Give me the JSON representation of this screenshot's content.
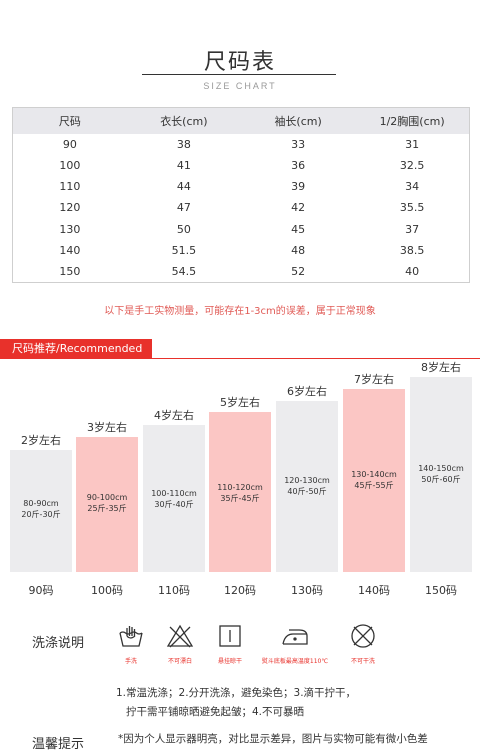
{
  "header": {
    "title": "尺码表",
    "subtitle": "SIZE CHART"
  },
  "table": {
    "columns": [
      "尺码",
      "衣长(cm)",
      "袖长(cm)",
      "1/2胸围(cm)"
    ],
    "rows": [
      [
        "90",
        "38",
        "33",
        "31"
      ],
      [
        "100",
        "41",
        "36",
        "32.5"
      ],
      [
        "110",
        "44",
        "39",
        "34"
      ],
      [
        "120",
        "47",
        "42",
        "35.5"
      ],
      [
        "130",
        "50",
        "45",
        "37"
      ],
      [
        "140",
        "51.5",
        "48",
        "38.5"
      ],
      [
        "150",
        "54.5",
        "52",
        "40"
      ]
    ]
  },
  "note": "以下是手工实物测量，可能存在1-3cm的误差，属于正常现象",
  "recommend": {
    "tag": "尺码推荐/Recommended",
    "colors": {
      "accent": "#e8312b",
      "pink": "#fbc6c4",
      "grey": "#ececee"
    },
    "bars": [
      {
        "age": "2岁左右",
        "height_cm": "80-90cm",
        "weight": "20斤-30斤",
        "size": "90码",
        "highlight": false
      },
      {
        "age": "3岁左右",
        "height_cm": "90-100cm",
        "weight": "25斤-35斤",
        "size": "100码",
        "highlight": true
      },
      {
        "age": "4岁左右",
        "height_cm": "100-110cm",
        "weight": "30斤-40斤",
        "size": "110码",
        "highlight": false
      },
      {
        "age": "5岁左右",
        "height_cm": "110-120cm",
        "weight": "35斤-45斤",
        "size": "120码",
        "highlight": true
      },
      {
        "age": "6岁左右",
        "height_cm": "120-130cm",
        "weight": "40斤-50斤",
        "size": "130码",
        "highlight": false
      },
      {
        "age": "7岁左右",
        "height_cm": "130-140cm",
        "weight": "45斤-55斤",
        "size": "140码",
        "highlight": true
      },
      {
        "age": "8岁左右",
        "height_cm": "140-150cm",
        "weight": "50斤-60斤",
        "size": "150码",
        "highlight": false
      }
    ]
  },
  "wash": {
    "title": "洗涤说明",
    "icons": [
      {
        "icon": "hand-wash-icon",
        "label": "手洗"
      },
      {
        "icon": "no-bleach-icon",
        "label": "不可漂白"
      },
      {
        "icon": "hang-dry-icon",
        "label": "悬挂晾干"
      },
      {
        "icon": "iron-icon",
        "label": "熨斗底板最高温度110℃"
      },
      {
        "icon": "no-dry-clean-icon",
        "label": "不可干洗"
      }
    ],
    "line1": "1.常温洗涤；2.分开洗涤，避免染色；3.滴干拧干，",
    "line2": "拧干需平铺晾晒避免起皱；4.不可暴晒"
  },
  "tips": {
    "title": "温馨提示",
    "text": "*因为个人显示器明亮，对比显示差异，图片与实物可能有微小色差"
  }
}
